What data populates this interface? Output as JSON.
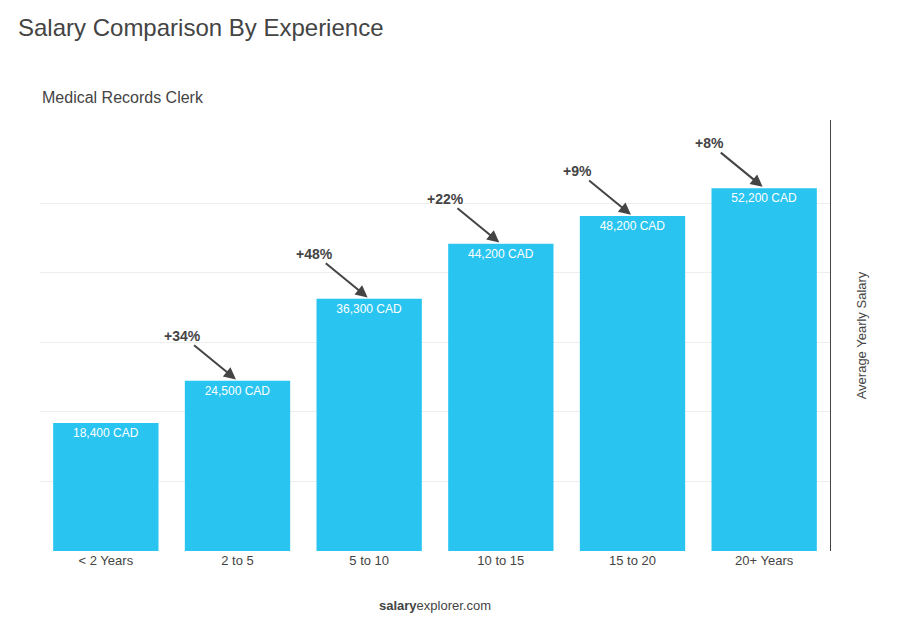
{
  "chart_data": {
    "type": "bar",
    "title": "Salary Comparison By Experience",
    "subtitle": "Medical Records Clerk",
    "categories": [
      "< 2 Years",
      "2 to 5",
      "5 to 10",
      "10 to 15",
      "15 to 20",
      "20+ Years"
    ],
    "values": [
      18400,
      24500,
      36300,
      44200,
      48200,
      52200
    ],
    "value_labels": [
      "18,400 CAD",
      "24,500 CAD",
      "36,300 CAD",
      "44,200 CAD",
      "48,200 CAD",
      "52,200 CAD"
    ],
    "data_labels": true,
    "color": "#29c5f0",
    "ylabel": "Average Yearly Salary",
    "annotations": [
      "+34%",
      "+48%",
      "+22%",
      "+9%",
      "+8%"
    ],
    "footer": [
      "salary",
      "explorer.com"
    ],
    "ylim": [
      0,
      62000
    ],
    "yticks": [
      10000,
      20000,
      30000,
      40000,
      50000
    ],
    "grid": true,
    "tick_labels": "x"
  }
}
